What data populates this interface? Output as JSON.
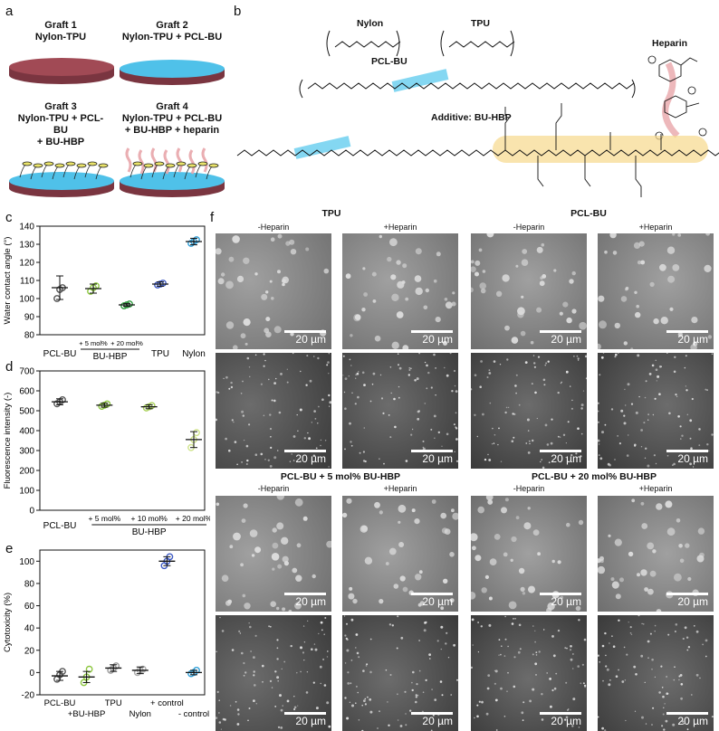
{
  "panels": {
    "a": "a",
    "b": "b",
    "c": "c",
    "d": "d",
    "e": "e",
    "f": "f"
  },
  "grafts": [
    {
      "line1": "Graft 1",
      "line2": "Nylon-TPU",
      "line3": "",
      "line4": "",
      "disc": "#a14a55"
    },
    {
      "line1": "Graft 2",
      "line2": "Nylon-TPU + PCL-BU",
      "line3": "",
      "line4": "",
      "disc": "#4fc1e9"
    },
    {
      "line1": "Graft 3",
      "line2": "Nylon-TPU + PCL-BU",
      "line3": "+ BU-HBP",
      "line4": "",
      "disc": "#4fc1e9"
    },
    {
      "line1": "Graft 4",
      "line2": "Nylon-TPU + PCL-BU",
      "line3": "+ BU-HBP + heparin",
      "line4": "",
      "disc": "#4fc1e9"
    }
  ],
  "chemistry": {
    "nylon": "Nylon",
    "tpu": "TPU",
    "pclbu": "PCL-BU",
    "heparin": "Heparin",
    "additive": "Additive: BU-HBP"
  },
  "chart_c": {
    "type": "scatter",
    "ylabel": "Water contact angle (°)",
    "ylim": [
      80,
      140
    ],
    "yticks": [
      80,
      90,
      100,
      110,
      120,
      130,
      140
    ],
    "categories": [
      "PCL-BU",
      "+ 5 mol%",
      "+ 20 mol%",
      "TPU",
      "Nylon"
    ],
    "group_label": "BU-HBP",
    "means": [
      106,
      105.5,
      96.5,
      108,
      131.5
    ],
    "errors": [
      6.5,
      2.5,
      0.8,
      1.2,
      1.8
    ],
    "points": [
      [
        100,
        105,
        106
      ],
      [
        104,
        106,
        107
      ],
      [
        96,
        96.5,
        97
      ],
      [
        107.5,
        108,
        108.5
      ],
      [
        130.5,
        131.5,
        132.5
      ]
    ],
    "colors": [
      "#555555",
      "#8cc63f",
      "#2e9a3e",
      "#3f5bc4",
      "#2f9fd8"
    ]
  },
  "chart_d": {
    "type": "scatter",
    "ylabel": "Fluorescence intensity (-)",
    "ylim": [
      0,
      700
    ],
    "yticks": [
      0,
      100,
      200,
      300,
      400,
      500,
      600,
      700
    ],
    "categories": [
      "PCL-BU",
      "+ 5 mol%",
      "+ 10 mol%",
      "+ 20 mol%"
    ],
    "group_label": "BU-HBP",
    "means": [
      545,
      528,
      520,
      355
    ],
    "errors": [
      15,
      10,
      10,
      40
    ],
    "points": [
      [
        535,
        545,
        555
      ],
      [
        522,
        528,
        534
      ],
      [
        514,
        520,
        526
      ],
      [
        315,
        355,
        390
      ]
    ],
    "colors": [
      "#555555",
      "#8cc63f",
      "#aad25a",
      "#cfe38a"
    ]
  },
  "chart_e": {
    "type": "scatter",
    "ylabel": "Cytotoxicity (%)",
    "ylim": [
      -20,
      110
    ],
    "yticks": [
      -20,
      0,
      20,
      40,
      60,
      80,
      100
    ],
    "categories": [
      "PCL-BU",
      "+BU-HBP",
      "TPU",
      "Nylon",
      "+ control",
      "- control"
    ],
    "means": [
      -3,
      -4,
      4,
      2,
      100,
      0
    ],
    "errors": [
      4,
      5,
      3,
      3,
      4,
      2
    ],
    "points": [
      [
        -6,
        -2,
        1
      ],
      [
        -9,
        -4,
        3
      ],
      [
        2,
        4,
        6
      ],
      [
        0,
        2,
        3
      ],
      [
        96,
        100,
        104
      ],
      [
        -1,
        0,
        2
      ]
    ],
    "colors": [
      "#555555",
      "#8cc63f",
      "#999999",
      "#aaaaaa",
      "#3f5bc4",
      "#2f9fd8"
    ]
  },
  "sem": {
    "top_titles": [
      "TPU",
      "PCL-BU"
    ],
    "bottom_titles": [
      "PCL-BU + 5 mol% BU-HBP",
      "PCL-BU + 20 mol% BU-HBP"
    ],
    "minus": "-Heparin",
    "plus": "+Heparin",
    "scale": "20 µm"
  }
}
